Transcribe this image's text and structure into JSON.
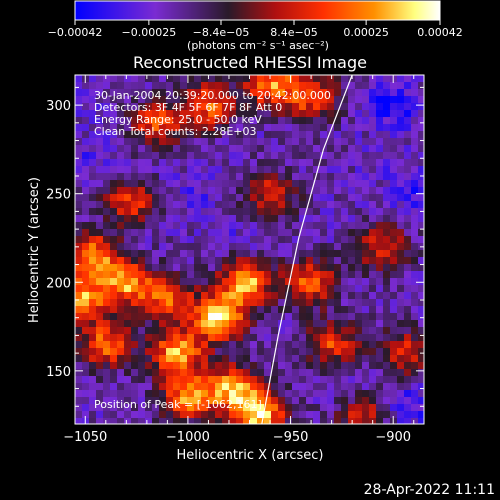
{
  "chart_data": {
    "type": "heatmap",
    "title": "Reconstructed RHESSI Image",
    "xlabel": "Heliocentric X (arcsec)",
    "ylabel": "Heliocentric Y (arcsec)",
    "xlim": [
      -1055,
      -885
    ],
    "ylim": [
      120,
      317
    ],
    "xticks": [
      -1050,
      -1000,
      -950,
      -900
    ],
    "yticks": [
      150,
      200,
      250,
      300
    ],
    "colorbar": {
      "unit_label": "(photons cm⁻² s⁻¹ asec⁻²)",
      "ticks": [
        {
          "value": -0.00042,
          "label": "−0.00042"
        },
        {
          "value": -0.00025,
          "label": "−0.00025"
        },
        {
          "value": -8.4e-05,
          "label": "−8.4e−05"
        },
        {
          "value": 8.4e-05,
          "label": "8.4e−05"
        },
        {
          "value": 0.00025,
          "label": "0.00025"
        },
        {
          "value": 0.00042,
          "label": "0.00042"
        }
      ],
      "range": [
        -0.00042,
        0.00042
      ],
      "colormap": [
        "#0000ff",
        "#7a2bd2",
        "#2a1a2a",
        "#b01010",
        "#ff3000",
        "#ff9000",
        "#ffff80",
        "#ffffff"
      ]
    },
    "info_lines": [
      "30-Jan-2004 20:39:20.000 to 20:42:00.000",
      "Detectors: 3F 4F 5F 6F 7F 8F  Att 0",
      "Energy Range: 25.0 - 50.0 keV",
      "Clean     Total counts: 2.28E+03"
    ],
    "peak_label": "Position of Peak = [-1062,161]",
    "limb_curve": [
      {
        "x": -964,
        "y": 120
      },
      {
        "x": -956,
        "y": 170
      },
      {
        "x": -946,
        "y": 225
      },
      {
        "x": -934,
        "y": 275
      },
      {
        "x": -920,
        "y": 317
      }
    ],
    "hot_spots": [
      {
        "x": -1052,
        "y": 190,
        "value": 0.0003
      },
      {
        "x": -1046,
        "y": 215,
        "value": 0.00028
      },
      {
        "x": -1040,
        "y": 165,
        "value": 0.00025
      },
      {
        "x": -1030,
        "y": 200,
        "value": 0.0003
      },
      {
        "x": -1028,
        "y": 245,
        "value": 0.00018
      },
      {
        "x": -1010,
        "y": 190,
        "value": 0.00022
      },
      {
        "x": -1005,
        "y": 160,
        "value": 0.00035
      },
      {
        "x": -1000,
        "y": 135,
        "value": 0.00028
      },
      {
        "x": -985,
        "y": 180,
        "value": 0.00042
      },
      {
        "x": -972,
        "y": 200,
        "value": 0.00036
      },
      {
        "x": -978,
        "y": 140,
        "value": 0.00034
      },
      {
        "x": -965,
        "y": 125,
        "value": 0.00038
      },
      {
        "x": -990,
        "y": 300,
        "value": 0.00024
      },
      {
        "x": -1015,
        "y": 290,
        "value": 0.0002
      },
      {
        "x": -960,
        "y": 312,
        "value": 0.00028
      },
      {
        "x": -940,
        "y": 305,
        "value": 0.00022
      },
      {
        "x": -940,
        "y": 200,
        "value": 0.00024
      },
      {
        "x": -930,
        "y": 165,
        "value": 0.00018
      },
      {
        "x": -905,
        "y": 220,
        "value": 0.00016
      },
      {
        "x": -895,
        "y": 160,
        "value": 0.00015
      },
      {
        "x": -915,
        "y": 125,
        "value": 0.00014
      },
      {
        "x": -960,
        "y": 250,
        "value": 0.00014
      }
    ],
    "cold_spots": [
      {
        "x": -1045,
        "y": 270,
        "value": -0.0003
      },
      {
        "x": -1020,
        "y": 230,
        "value": -0.00022
      },
      {
        "x": -998,
        "y": 250,
        "value": -0.0003
      },
      {
        "x": -975,
        "y": 225,
        "value": -0.00026
      },
      {
        "x": -900,
        "y": 300,
        "value": -0.00042
      },
      {
        "x": -890,
        "y": 250,
        "value": -0.00034
      },
      {
        "x": -905,
        "y": 270,
        "value": -0.00026
      },
      {
        "x": -892,
        "y": 130,
        "value": -0.00036
      },
      {
        "x": -920,
        "y": 140,
        "value": -0.00028
      },
      {
        "x": -930,
        "y": 240,
        "value": -0.00022
      },
      {
        "x": -1050,
        "y": 300,
        "value": -0.00024
      },
      {
        "x": -955,
        "y": 150,
        "value": -0.0002
      }
    ]
  },
  "footer": {
    "timestamp": "28-Apr-2022 11:11"
  }
}
